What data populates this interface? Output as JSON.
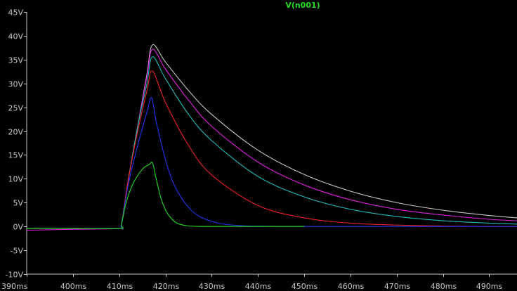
{
  "chart_data": {
    "type": "line",
    "title": "V(n001)",
    "title_color": "#22dd22",
    "background": "#000000",
    "axis_color": "#c8c8c8",
    "xlim": [
      390,
      496
    ],
    "ylim": [
      -10,
      45
    ],
    "x_ticks": [
      390,
      400,
      410,
      420,
      430,
      440,
      450,
      460,
      470,
      480,
      490
    ],
    "x_tick_labels": [
      "390ms",
      "400ms",
      "410ms",
      "420ms",
      "430ms",
      "440ms",
      "450ms",
      "460ms",
      "470ms",
      "480ms",
      "490ms"
    ],
    "y_ticks": [
      -10,
      -5,
      0,
      5,
      10,
      15,
      20,
      25,
      30,
      35,
      40,
      45
    ],
    "y_tick_labels": [
      "-10V",
      "-5V",
      "0V",
      "5V",
      "10V",
      "15V",
      "20V",
      "25V",
      "30V",
      "35V",
      "40V",
      "45V"
    ],
    "series": [
      {
        "color": "#c8c8c8",
        "x": [
          390,
          400,
          410,
          410.5,
          412,
          414,
          416,
          417.2,
          420,
          425,
          430,
          440,
          450,
          460,
          470,
          480,
          490,
          496
        ],
        "y": [
          -0.4,
          -0.4,
          -0.4,
          0.5,
          10,
          21,
          32,
          38.1,
          34.5,
          28.5,
          23.5,
          16,
          10.9,
          7.4,
          5,
          3.4,
          2.3,
          1.8
        ]
      },
      {
        "color": "#dd22dd",
        "x": [
          390,
          400,
          410,
          410.5,
          412,
          414,
          416,
          417.2,
          420,
          425,
          430,
          440,
          450,
          460,
          470,
          480,
          490,
          496
        ],
        "y": [
          -0.8,
          -0.6,
          -0.4,
          0.5,
          10,
          21,
          31.5,
          37.2,
          33,
          26.5,
          21,
          13.5,
          8.7,
          5.6,
          3.6,
          2.4,
          1.5,
          1.2
        ]
      },
      {
        "color": "#22bbbb",
        "x": [
          390,
          400,
          410,
          410.5,
          412,
          414,
          416,
          417.2,
          420,
          425,
          430,
          440,
          450,
          460,
          470,
          480,
          490,
          496
        ],
        "y": [
          -0.4,
          -0.4,
          -0.4,
          0.5,
          10,
          21,
          30,
          35.6,
          31,
          23.5,
          18,
          10.5,
          6.2,
          3.6,
          2.1,
          1.2,
          0.7,
          0.5
        ]
      },
      {
        "color": "#ee2222",
        "x": [
          390,
          400,
          410,
          410.5,
          412,
          414,
          416,
          417.2,
          420,
          425,
          430,
          440,
          450,
          460,
          470,
          480,
          490,
          496
        ],
        "y": [
          -0.4,
          -0.4,
          -0.4,
          0.5,
          10,
          20,
          28.5,
          32.6,
          26,
          17,
          10.8,
          4.4,
          1.8,
          0.7,
          0.3,
          0.1,
          0,
          0
        ]
      },
      {
        "color": "#2233ee",
        "x": [
          390,
          400,
          410,
          410.5,
          412,
          414,
          416,
          417,
          418,
          420,
          422,
          425,
          428,
          432,
          436,
          440,
          450,
          460,
          496
        ],
        "y": [
          -0.4,
          -0.4,
          -0.4,
          0.5,
          9,
          17,
          24,
          27,
          22,
          14,
          8.5,
          4,
          1.8,
          0.6,
          0.2,
          0.05,
          0,
          0,
          0
        ]
      },
      {
        "color": "#22dd22",
        "x": [
          390,
          400,
          410,
          410.5,
          411.5,
          413,
          415,
          416.5,
          417.2,
          418,
          419,
          420,
          421,
          422,
          423,
          425,
          428,
          435,
          450
        ],
        "y": [
          -0.4,
          -0.4,
          -0.4,
          0.5,
          5,
          9,
          12,
          13,
          13.3,
          10,
          6,
          3.5,
          2,
          1,
          0.5,
          0.1,
          0,
          0,
          0
        ]
      }
    ]
  }
}
